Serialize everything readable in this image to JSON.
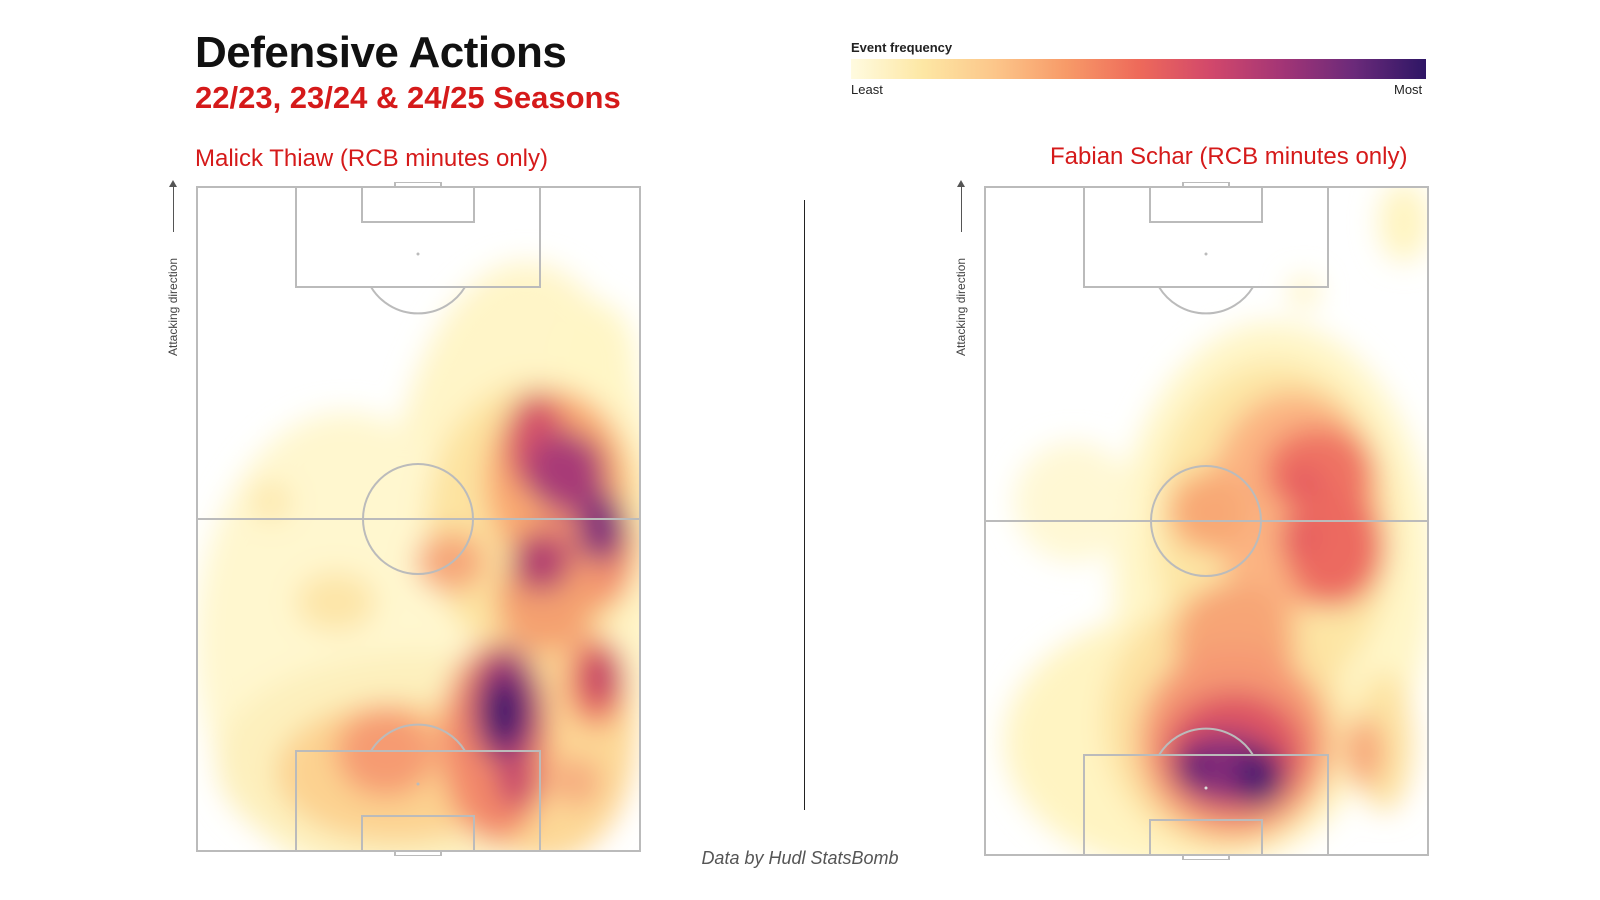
{
  "header": {
    "title": "Defensive Actions",
    "subtitle": "22/23, 23/24 & 24/25 Seasons"
  },
  "legend": {
    "label": "Event frequency",
    "min_label": "Least",
    "max_label": "Most",
    "colors": [
      "#fffbe0",
      "#fde7a4",
      "#fcc68a",
      "#f79a68",
      "#ee6a5a",
      "#d2486b",
      "#a33576",
      "#6b2a7a",
      "#2e1665"
    ]
  },
  "left_panel": {
    "player": "Malick Thiaw (RCB minutes only)",
    "direction_label": "Attacking direction"
  },
  "right_panel": {
    "player": "Fabian Schar (RCB minutes only)",
    "direction_label": "Attacking direction"
  },
  "footer": "Data by Hudl StatsBomb",
  "colors": {
    "accent": "#d51a1a",
    "pitch_line": "#bbbbbb"
  }
}
